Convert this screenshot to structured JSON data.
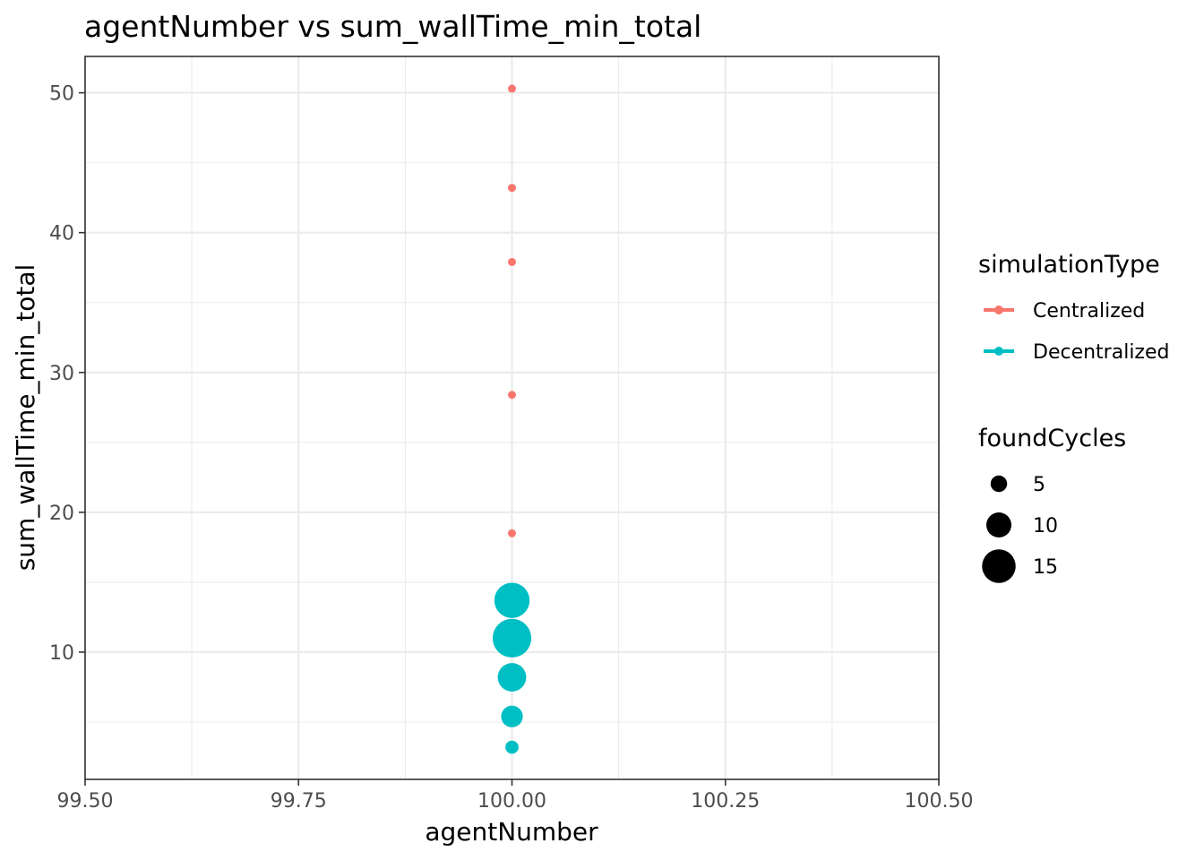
{
  "chart_data": {
    "type": "scatter",
    "title": "agentNumber  vs  sum_wallTime_min_total",
    "xlabel": "agentNumber",
    "ylabel": "sum_wallTime_min_total",
    "xlim": [
      99.5,
      100.5
    ],
    "ylim": [
      0.9,
      52.6
    ],
    "x_ticks": [
      99.5,
      99.75,
      100.0,
      100.25,
      100.5
    ],
    "x_tick_labels": [
      "99.50",
      "99.75",
      "100.00",
      "100.25",
      "100.50"
    ],
    "y_ticks": [
      10,
      20,
      30,
      40,
      50
    ],
    "y_tick_labels": [
      "10",
      "20",
      "30",
      "40",
      "50"
    ],
    "grid": true,
    "legend_position": "right",
    "color_legend": {
      "title": "simulationType",
      "entries": [
        {
          "label": "Centralized",
          "color": "#F8766D"
        },
        {
          "label": "Decentralized",
          "color": "#00BFC4"
        }
      ]
    },
    "size_legend": {
      "title": "foundCycles",
      "entries": [
        {
          "label": "5",
          "value": 5
        },
        {
          "label": "10",
          "value": 10
        },
        {
          "label": "15",
          "value": 15
        }
      ]
    },
    "series": [
      {
        "name": "Centralized",
        "color": "#F8766D",
        "points": [
          {
            "x": 100,
            "y": 50.3,
            "size": 0
          },
          {
            "x": 100,
            "y": 43.2,
            "size": 0
          },
          {
            "x": 100,
            "y": 37.9,
            "size": 0
          },
          {
            "x": 100,
            "y": 28.4,
            "size": 0
          },
          {
            "x": 100,
            "y": 18.5,
            "size": 0
          }
        ]
      },
      {
        "name": "Decentralized",
        "color": "#00BFC4",
        "points": [
          {
            "x": 100,
            "y": 13.7,
            "size": 16
          },
          {
            "x": 100,
            "y": 11.0,
            "size": 18
          },
          {
            "x": 100,
            "y": 8.2,
            "size": 12
          },
          {
            "x": 100,
            "y": 5.4,
            "size": 8
          },
          {
            "x": 100,
            "y": 3.2,
            "size": 3
          }
        ]
      }
    ]
  }
}
